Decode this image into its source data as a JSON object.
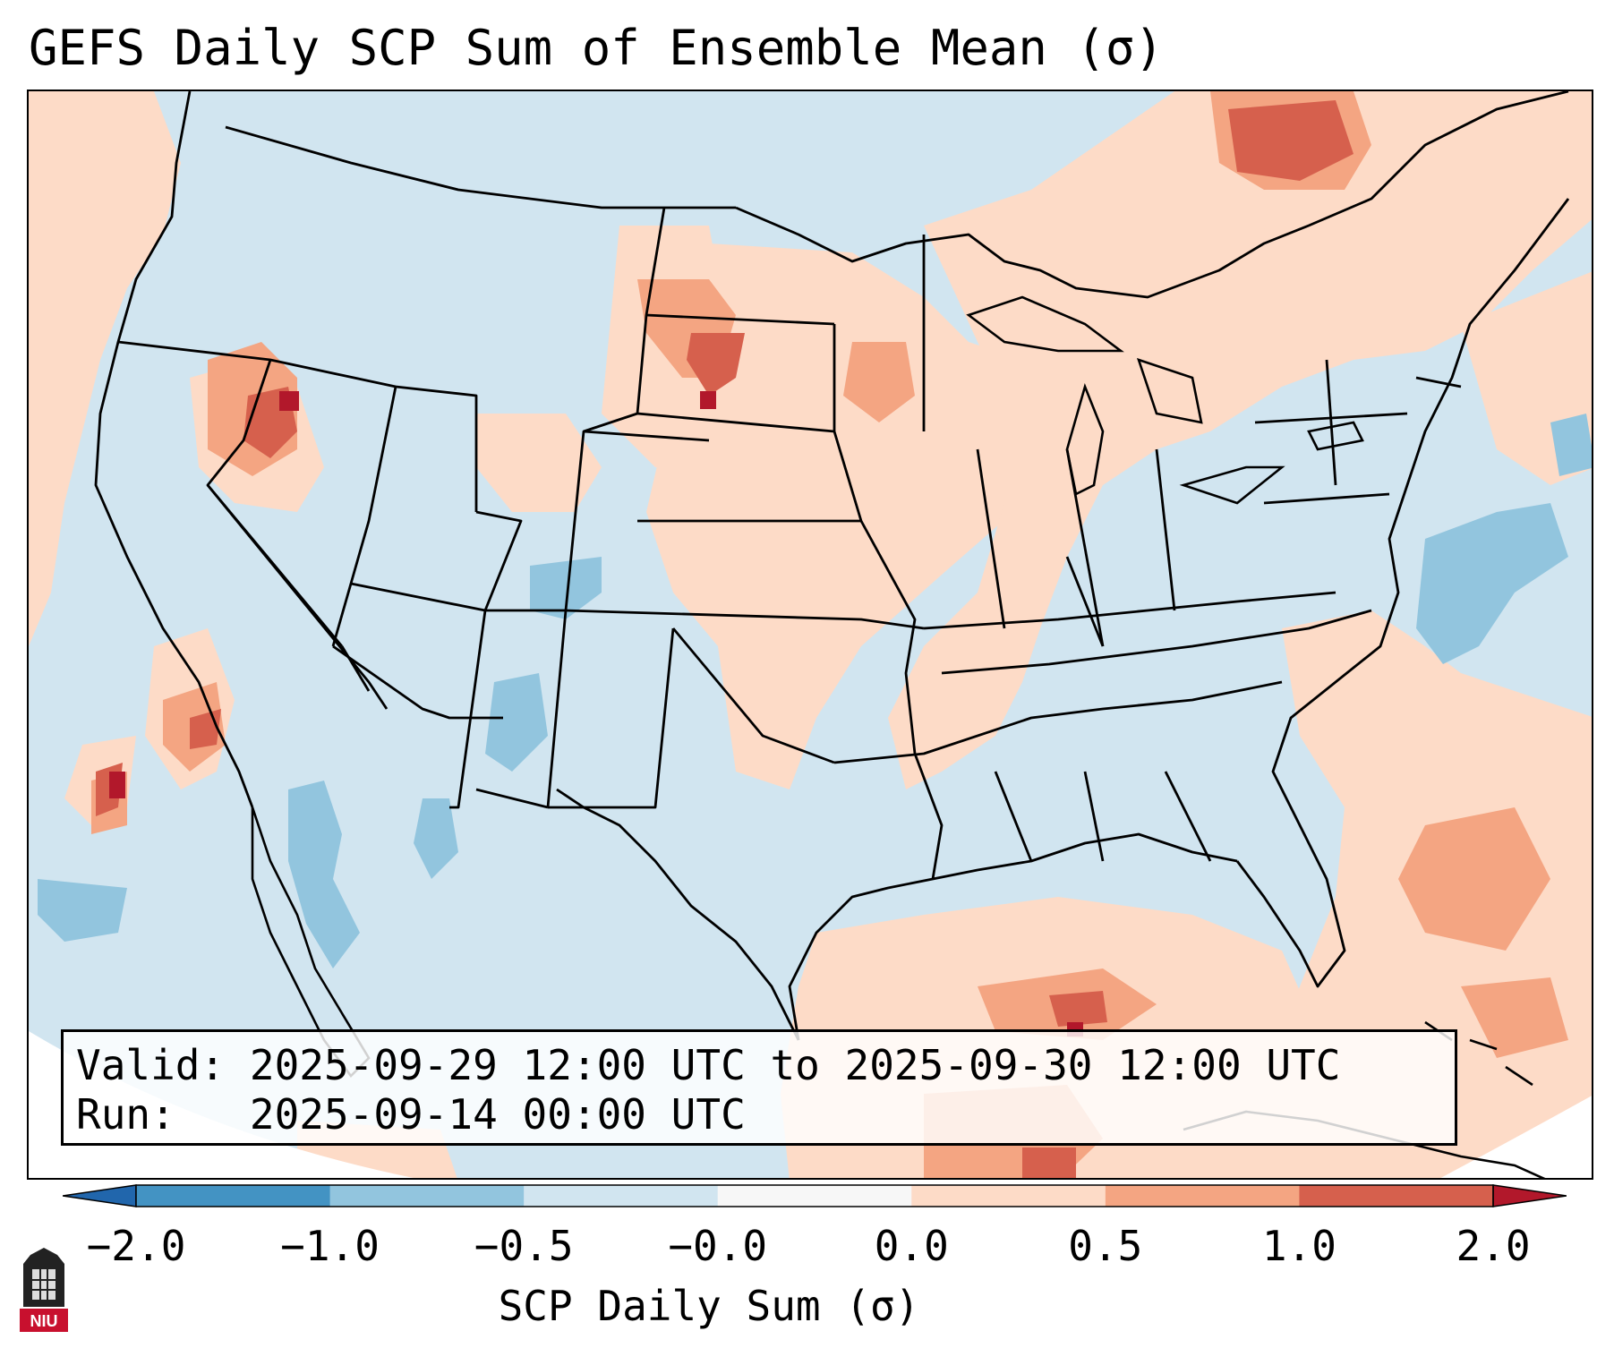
{
  "title": "GEFS Daily SCP Sum of Ensemble Mean (σ)",
  "valid_label": "Valid:",
  "valid_range": "2025-09-29 12:00 UTC to 2025-09-30 12:00 UTC",
  "run_label": "Run:",
  "run_time": "2025-09-14 00:00 UTC",
  "colorbar": {
    "label": "SCP Daily Sum (σ)",
    "ticks": [
      "−2.0",
      "−1.0",
      "−0.5",
      "−0.0",
      "0.0",
      "0.5",
      "1.0",
      "2.0"
    ],
    "colors": [
      "#4393c3",
      "#92c5de",
      "#d1e5f0",
      "#f7f7f7",
      "#fddbc7",
      "#f4a582",
      "#d6604d"
    ],
    "extend_min_color": "#2166ac",
    "extend_max_color": "#b2182b"
  },
  "logo": {
    "text": "NIU",
    "color": "#c8102e"
  }
}
